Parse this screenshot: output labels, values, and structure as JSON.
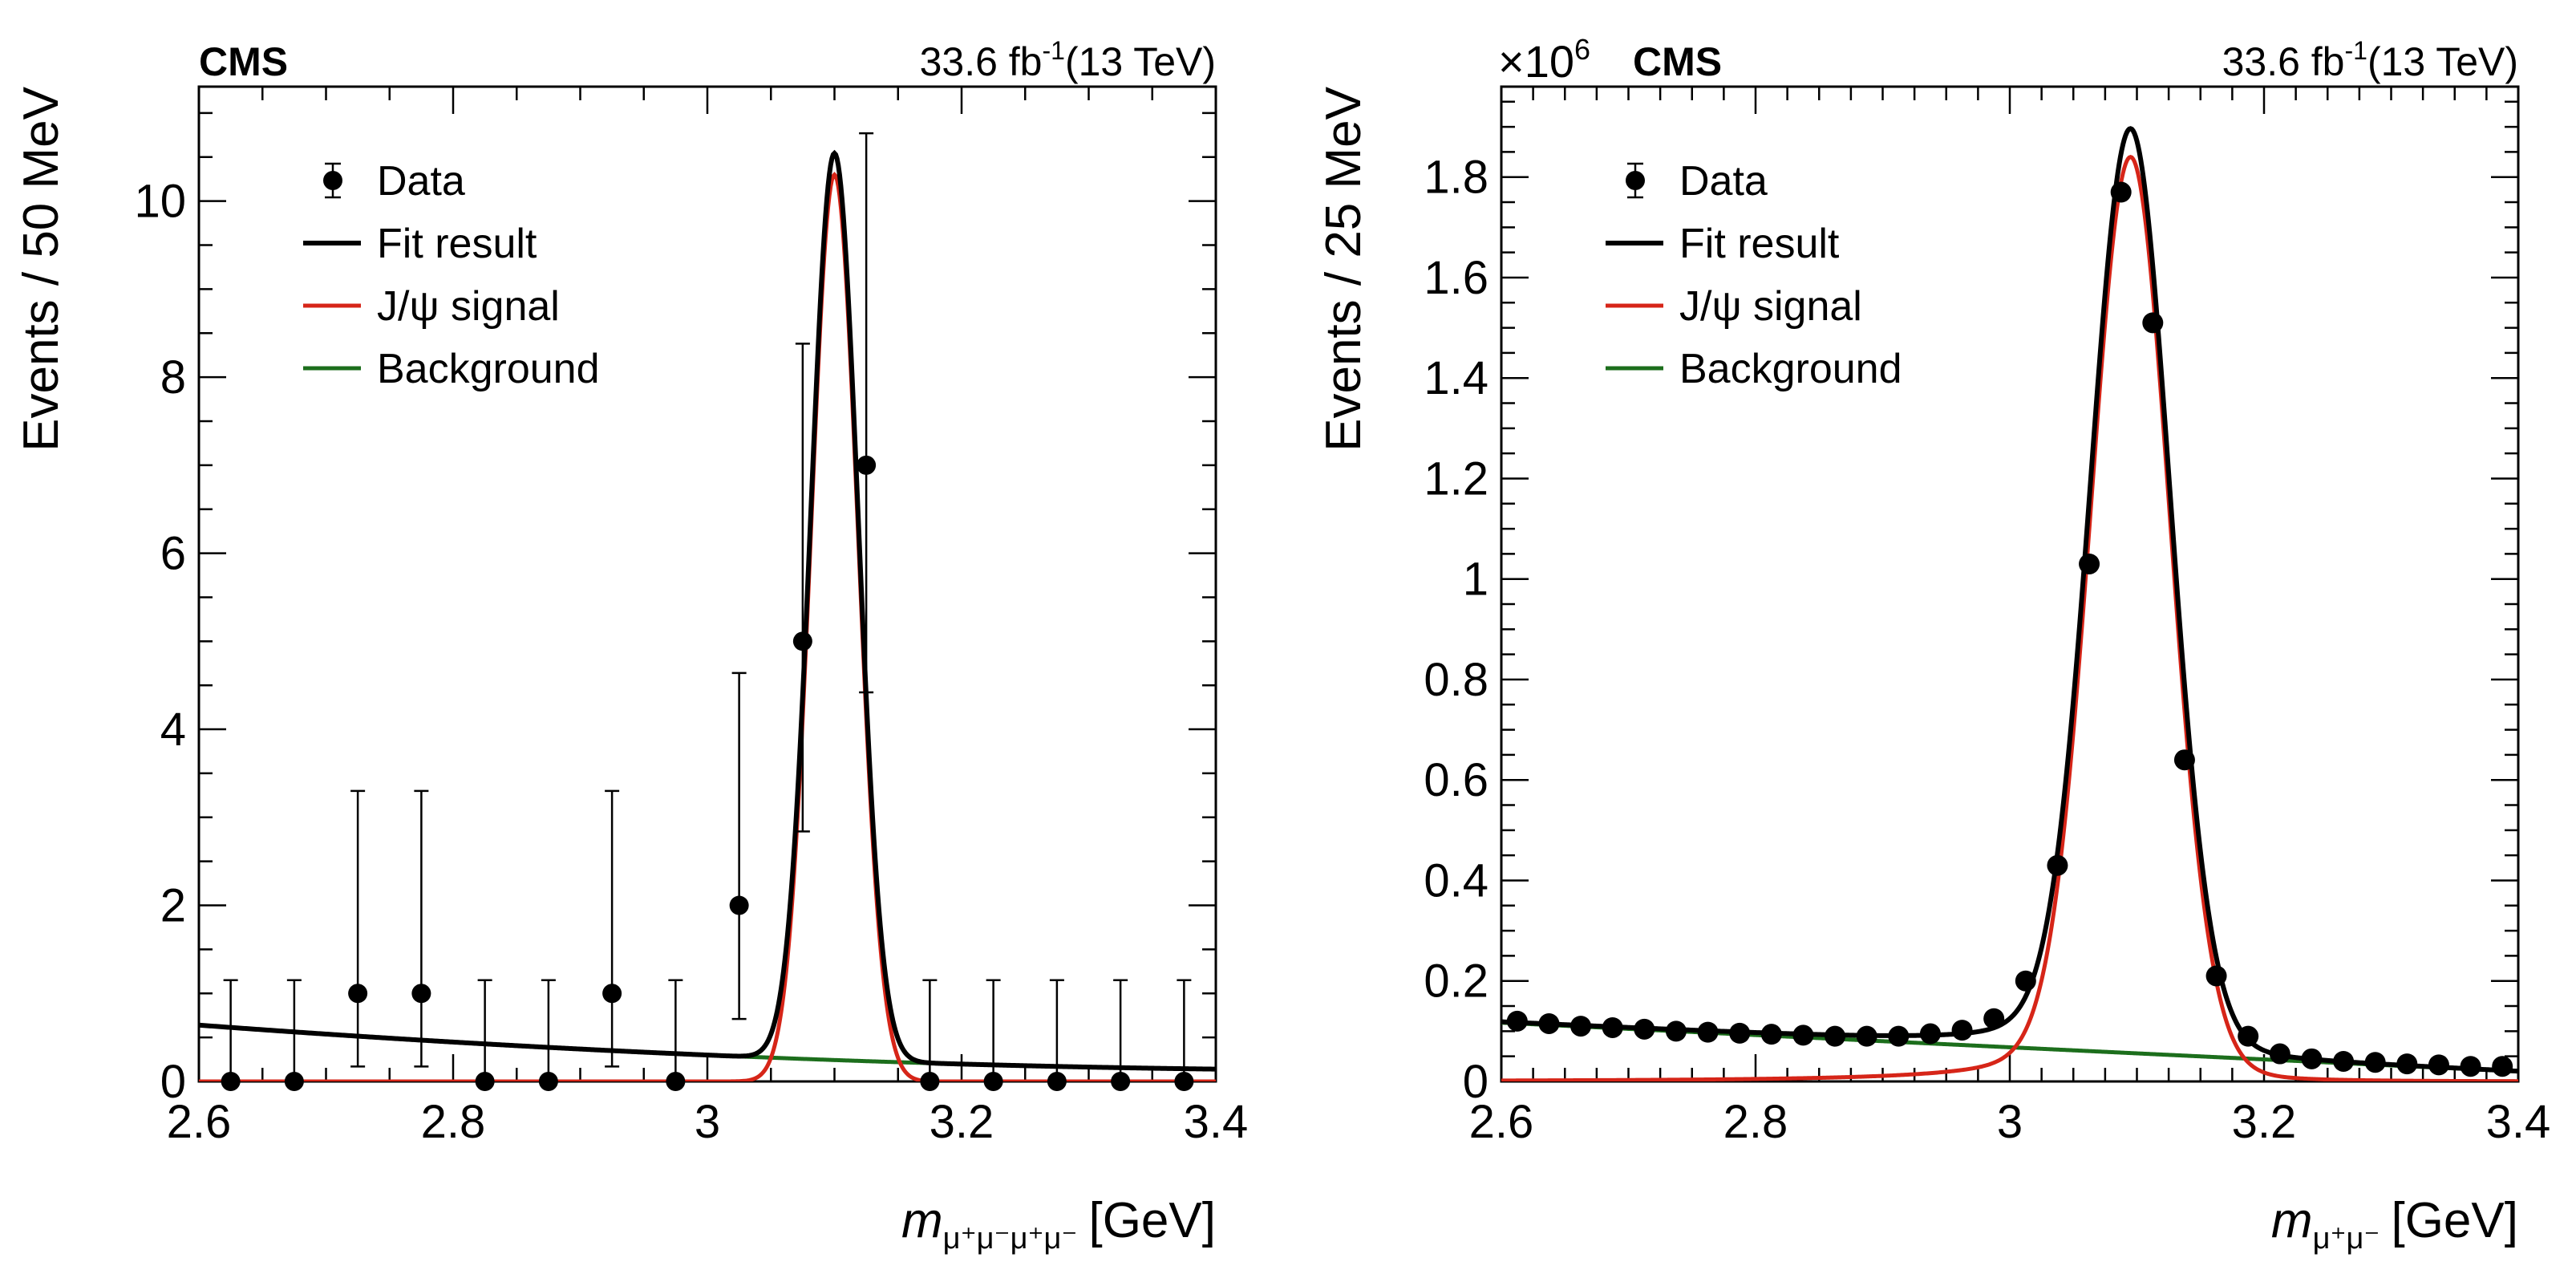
{
  "chart_data": [
    {
      "type": "scatter",
      "experiment": "CMS",
      "lumi": "33.6 fb",
      "lumi_exp": "-1",
      "energy": "(13 TeV)",
      "ylabel": "Events / 50 MeV",
      "xlabel_var": "m",
      "xlabel_sub": "μ⁺μ⁻μ⁺μ⁻",
      "xlabel_unit": "[GeV]",
      "xlim": [
        2.6,
        3.4
      ],
      "ylim": [
        0,
        11.3
      ],
      "x_ticks": [
        2.6,
        2.8,
        3.0,
        3.2,
        3.4
      ],
      "x_tick_labels": [
        "2.6",
        "2.8",
        "3",
        "3.2",
        "3.4"
      ],
      "y_ticks": [
        0,
        2,
        4,
        6,
        8,
        10
      ],
      "y_tick_labels": [
        "0",
        "2",
        "4",
        "6",
        "8",
        "10"
      ],
      "x_minor_step": 0.05,
      "y_minor_step": 0.5,
      "legend": [
        "Data",
        "Fit result",
        "J/ψ signal",
        "Background"
      ],
      "series": [
        {
          "name": "Data",
          "x": [
            2.625,
            2.675,
            2.725,
            2.775,
            2.825,
            2.875,
            2.925,
            2.975,
            3.025,
            3.075,
            3.125,
            3.175,
            3.225,
            3.275,
            3.325,
            3.375
          ],
          "y": [
            0,
            0,
            1,
            1,
            0,
            0,
            1,
            0,
            2,
            5,
            7,
            0,
            0,
            0,
            0,
            0
          ],
          "err_low": [
            0,
            0,
            0.83,
            0.83,
            0,
            0,
            0.83,
            0,
            1.29,
            2.16,
            2.58,
            0,
            0,
            0,
            0,
            0
          ],
          "err_high": [
            1.15,
            1.15,
            2.3,
            2.3,
            1.15,
            1.15,
            2.3,
            1.15,
            2.64,
            3.38,
            3.77,
            1.15,
            1.15,
            1.15,
            1.15,
            1.15
          ]
        },
        {
          "name": "Fit result",
          "color": "#000000"
        },
        {
          "name": "J/ψ signal",
          "color": "#d62518",
          "peak_x": 3.1,
          "peak_y": 10.3,
          "width": 0.0185,
          "tail": 0
        },
        {
          "name": "Background",
          "color": "#1c6e1c",
          "bkg_points": [
            [
              2.6,
              0.64
            ],
            [
              3.0,
              0.3
            ],
            [
              3.4,
              0.14
            ]
          ]
        }
      ]
    },
    {
      "type": "scatter",
      "experiment": "CMS",
      "multiplier": "×10",
      "multiplier_exp": "6",
      "lumi": "33.6 fb",
      "lumi_exp": "-1",
      "energy": "(13 TeV)",
      "ylabel": "Events / 25 MeV",
      "xlabel_var": "m",
      "xlabel_sub": "μ⁺μ⁻",
      "xlabel_unit": "[GeV]",
      "xlim": [
        2.6,
        3.4
      ],
      "ylim": [
        0,
        1.98
      ],
      "x_ticks": [
        2.6,
        2.8,
        3.0,
        3.2,
        3.4
      ],
      "x_tick_labels": [
        "2.6",
        "2.8",
        "3",
        "3.2",
        "3.4"
      ],
      "y_ticks": [
        0,
        0.2,
        0.4,
        0.6,
        0.8,
        1.0,
        1.2,
        1.4,
        1.6,
        1.8
      ],
      "y_tick_labels": [
        "0",
        "0.2",
        "0.4",
        "0.6",
        "0.8",
        "1",
        "1.2",
        "1.4",
        "1.6",
        "1.8"
      ],
      "x_minor_step": 0.025,
      "y_minor_step": 0.05,
      "legend": [
        "Data",
        "Fit result",
        "J/ψ signal",
        "Background"
      ],
      "series": [
        {
          "name": "Data",
          "x": [
            2.6125,
            2.6375,
            2.6625,
            2.6875,
            2.7125,
            2.7375,
            2.7625,
            2.7875,
            2.8125,
            2.8375,
            2.8625,
            2.8875,
            2.9125,
            2.9375,
            2.9625,
            2.9875,
            3.0125,
            3.0375,
            3.0625,
            3.0875,
            3.1125,
            3.1375,
            3.1625,
            3.1875,
            3.2125,
            3.2375,
            3.2625,
            3.2875,
            3.3125,
            3.3375,
            3.3625,
            3.3875
          ],
          "y": [
            0.12,
            0.115,
            0.11,
            0.107,
            0.104,
            0.1,
            0.098,
            0.096,
            0.094,
            0.092,
            0.09,
            0.09,
            0.09,
            0.095,
            0.102,
            0.125,
            0.2,
            0.43,
            1.03,
            1.77,
            1.51,
            0.64,
            0.21,
            0.09,
            0.055,
            0.045,
            0.04,
            0.038,
            0.035,
            0.033,
            0.03,
            0.03
          ],
          "err_low": [],
          "err_high": []
        },
        {
          "name": "Fit result",
          "color": "#000000"
        },
        {
          "name": "J/ψ signal",
          "color": "#d62518",
          "peak_x": 3.095,
          "peak_y": 1.84,
          "width": 0.0315,
          "tail": 0.11
        },
        {
          "name": "Background",
          "color": "#1c6e1c",
          "bkg_points": [
            [
              2.6,
              0.117
            ],
            [
              3.0,
              0.068
            ],
            [
              3.4,
              0.02
            ]
          ]
        }
      ]
    }
  ]
}
